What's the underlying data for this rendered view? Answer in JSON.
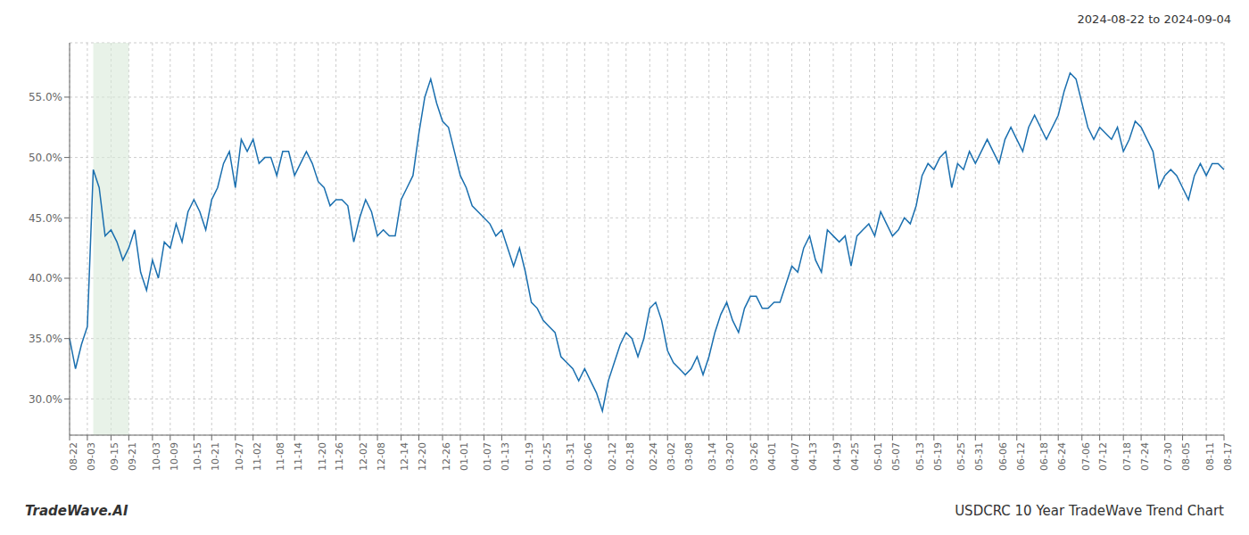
{
  "chart_data": {
    "type": "line",
    "title": "2024-08-22 to 2024-09-04",
    "annotations": [
      "TradeWave.AI",
      "USDCRC 10 Year TradeWave Trend Chart"
    ],
    "color": "#1a6faf",
    "grid": true,
    "ylim": [
      27.0,
      59.5
    ],
    "yticks": [
      {
        "value": 30.0,
        "label": "30.0%"
      },
      {
        "value": 35.0,
        "label": "35.0%"
      },
      {
        "value": 40.0,
        "label": "40.0%"
      },
      {
        "value": 45.0,
        "label": "45.0%"
      },
      {
        "value": 50.0,
        "label": "50.0%"
      },
      {
        "value": 55.0,
        "label": "55.0%"
      }
    ],
    "highlight": {
      "start": 4,
      "end": 10,
      "color": "#d8ead8"
    },
    "categories": [
      "08-22",
      null,
      null,
      "09-03",
      null,
      null,
      null,
      "09-15",
      null,
      null,
      "09-21",
      null,
      null,
      null,
      "10-03",
      null,
      null,
      "10-09",
      null,
      null,
      null,
      "10-15",
      null,
      null,
      "10-21",
      null,
      null,
      null,
      "10-27",
      null,
      null,
      "11-02",
      null,
      null,
      null,
      "11-08",
      null,
      null,
      "11-14",
      null,
      null,
      null,
      "11-20",
      null,
      null,
      "11-26",
      null,
      null,
      null,
      "12-02",
      null,
      null,
      "12-08",
      null,
      null,
      null,
      "12-14",
      null,
      null,
      "12-20",
      null,
      null,
      null,
      "12-26",
      null,
      null,
      "01-01",
      null,
      null,
      null,
      "01-07",
      null,
      null,
      "01-13",
      null,
      null,
      null,
      "01-19",
      null,
      null,
      "01-25",
      null,
      null,
      null,
      "01-31",
      null,
      null,
      "02-06",
      null,
      null,
      null,
      "02-12",
      null,
      null,
      "02-18",
      null,
      null,
      null,
      "02-24",
      null,
      null,
      "03-02",
      null,
      null,
      "03-08",
      null,
      null,
      null,
      "03-14",
      null,
      null,
      "03-20",
      null,
      null,
      null,
      "03-26",
      null,
      null,
      "04-01",
      null,
      null,
      null,
      "04-07",
      null,
      null,
      "04-13",
      null,
      null,
      null,
      "04-19",
      null,
      null,
      "04-25",
      null,
      null,
      null,
      "05-01",
      null,
      null,
      "05-07",
      null,
      null,
      null,
      "05-13",
      null,
      null,
      "05-19",
      null,
      null,
      null,
      "05-25",
      null,
      null,
      "05-31",
      null,
      null,
      null,
      "06-06",
      null,
      null,
      "06-12",
      null,
      null,
      null,
      "06-18",
      null,
      null,
      "06-24",
      null,
      null,
      null,
      "07-06",
      null,
      null,
      "07-12",
      null,
      null,
      null,
      "07-18",
      null,
      null,
      "07-24",
      null,
      null,
      null,
      "07-30",
      null,
      null,
      "08-05",
      null,
      null,
      null,
      "08-11",
      null,
      null,
      "08-17"
    ],
    "values": [
      35.0,
      32.5,
      34.5,
      36.0,
      49.0,
      47.5,
      43.5,
      44.0,
      43.0,
      41.5,
      42.5,
      44.0,
      40.5,
      39.0,
      41.5,
      40.0,
      43.0,
      42.5,
      44.5,
      43.0,
      45.5,
      46.5,
      45.5,
      44.0,
      46.5,
      47.5,
      49.5,
      50.5,
      47.5,
      51.5,
      50.5,
      51.5,
      49.5,
      50.0,
      50.0,
      48.5,
      50.5,
      50.5,
      48.5,
      49.5,
      50.5,
      49.5,
      48.0,
      47.5,
      46.0,
      46.5,
      46.5,
      46.0,
      43.0,
      45.0,
      46.5,
      45.5,
      43.5,
      44.0,
      43.5,
      43.5,
      46.5,
      47.5,
      48.5,
      52.0,
      55.0,
      56.5,
      54.5,
      53.0,
      52.5,
      50.5,
      48.5,
      47.5,
      46.0,
      45.5,
      45.0,
      44.5,
      43.5,
      44.0,
      42.5,
      41.0,
      42.5,
      40.5,
      38.0,
      37.5,
      36.5,
      36.0,
      35.5,
      33.5,
      33.0,
      32.5,
      31.5,
      32.5,
      31.5,
      30.5,
      29.0,
      31.5,
      33.0,
      34.5,
      35.5,
      35.0,
      33.5,
      35.0,
      37.5,
      38.0,
      36.5,
      34.0,
      33.0,
      32.5,
      32.0,
      32.5,
      33.5,
      32.0,
      33.5,
      35.5,
      37.0,
      38.0,
      36.5,
      35.5,
      37.5,
      38.5,
      38.5,
      37.5,
      37.5,
      38.0,
      38.0,
      39.5,
      41.0,
      40.5,
      42.5,
      43.5,
      41.5,
      40.5,
      44.0,
      43.5,
      43.0,
      43.5,
      41.0,
      43.5,
      44.0,
      44.5,
      43.5,
      45.5,
      44.5,
      43.5,
      44.0,
      45.0,
      44.5,
      46.0,
      48.5,
      49.5,
      49.0,
      50.0,
      50.5,
      47.5,
      49.5,
      49.0,
      50.5,
      49.5,
      50.5,
      51.5,
      50.5,
      49.5,
      51.5,
      52.5,
      51.5,
      50.5,
      52.5,
      53.5,
      52.5,
      51.5,
      52.5,
      53.5,
      55.5,
      57.0,
      56.5,
      54.5,
      52.5,
      51.5,
      52.5,
      52.0,
      51.5,
      52.5,
      50.5,
      51.5,
      53.0,
      52.5,
      51.5,
      50.5,
      47.5,
      48.5,
      49.0,
      48.5,
      47.5,
      46.5,
      48.5,
      49.5,
      48.5,
      49.5,
      49.5,
      49.0
    ]
  }
}
